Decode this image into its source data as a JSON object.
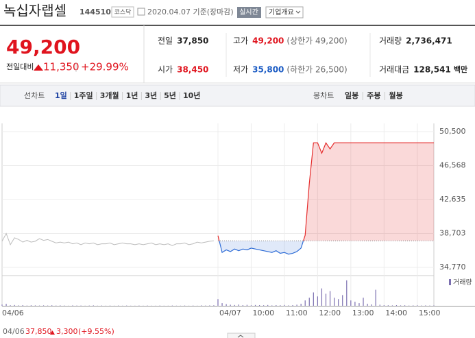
{
  "stock": {
    "name": "녹십자랩셀",
    "code": "144510",
    "market": "코스닥",
    "date": "2020.04.07 기준(장마감)",
    "realtime": "실시간",
    "overview": "기업개요"
  },
  "quote": {
    "price": "49,200",
    "change_label": "전일대비",
    "change": "11,350",
    "rate": "+29.99%"
  },
  "stats": [
    [
      {
        "label": "전일",
        "value": "37,850",
        "color": "#222"
      },
      {
        "label": "고가",
        "value": "49,200",
        "extra": "(상한가 49,200)",
        "color": "#e0141e"
      },
      {
        "label": "거래량",
        "value": "2,736,471",
        "color": "#222"
      }
    ],
    [
      {
        "label": "시가",
        "value": "38,450",
        "color": "#e0141e"
      },
      {
        "label": "저가",
        "value": "35,800",
        "extra": "(하한가 26,500)",
        "color": "#1a5bc4"
      },
      {
        "label": "거래대금",
        "value": "128,541",
        "unit": "백만",
        "color": "#222"
      }
    ]
  ],
  "tabs": {
    "line_label": "선차트",
    "line": [
      "1일",
      "1주일",
      "3개월",
      "1년",
      "3년",
      "5년",
      "10년"
    ],
    "candle_label": "봉차트",
    "candle": [
      "일봉",
      "주봉",
      "월봉"
    ]
  },
  "footer": {
    "date": "04/06",
    "close": "37,850",
    "change": "3,300",
    "rate": "(+9.55%)"
  },
  "chart_data": [
    {
      "type": "line",
      "baseline": 37850,
      "up_color": "#e52b2b",
      "down_color": "#2c6bd6",
      "grid": true,
      "ylim": [
        34770,
        50500
      ],
      "yticks": [
        {
          "value": 50500,
          "label": "50,500"
        },
        {
          "value": 46568,
          "label": "46,568"
        },
        {
          "value": 42635,
          "label": "42,635"
        },
        {
          "value": 38703,
          "label": "38,703"
        },
        {
          "value": 34770,
          "label": "34,770"
        }
      ],
      "categories": [
        "04/06",
        null,
        null,
        null,
        null,
        null,
        null,
        null,
        null,
        null,
        null,
        null,
        null,
        null,
        null,
        null,
        null,
        null,
        null,
        null,
        null,
        null,
        null,
        null,
        null,
        null,
        null,
        null,
        null,
        null,
        null,
        null,
        null,
        null,
        null,
        null,
        null,
        null,
        null,
        null,
        null,
        null,
        null,
        null,
        null,
        null,
        null,
        null,
        null,
        null,
        null,
        null,
        "04/07",
        null,
        null,
        null,
        null,
        null,
        null,
        null,
        "10:00",
        null,
        null,
        null,
        null,
        null,
        null,
        null,
        "11:00",
        null,
        null,
        null,
        null,
        null,
        null,
        null,
        "12:00",
        null,
        null,
        null,
        null,
        null,
        null,
        null,
        "13:00",
        null,
        null,
        null,
        null,
        null,
        null,
        null,
        "14:00",
        null,
        null,
        null,
        null,
        null,
        null,
        null,
        "15:00",
        null,
        null,
        null,
        null
      ],
      "series": [
        {
          "color": "#bbbbbb",
          "values": [
            37800,
            38700,
            37400,
            38200,
            38000,
            37700,
            37900,
            37700,
            37800,
            38100,
            37900,
            38000,
            37800,
            37600,
            37700,
            37600,
            37700,
            37500,
            37600,
            37400,
            37600,
            37500,
            37600,
            37400,
            37500,
            37500,
            37600,
            37400,
            37500,
            37600,
            37500,
            37500,
            37400,
            37500,
            37400,
            37500,
            37600,
            37400,
            37500,
            37400,
            37500,
            37300,
            37500,
            37500,
            37600,
            37400,
            37500,
            37700,
            37600,
            37700,
            37800,
            37850,
            null,
            null,
            null,
            null,
            null,
            null,
            null,
            null,
            null,
            null,
            null,
            null,
            null,
            null,
            null,
            null,
            null,
            null,
            null,
            null,
            null,
            null,
            null,
            null,
            null,
            null,
            null,
            null,
            null,
            null,
            null,
            null,
            null,
            null,
            null,
            null,
            null,
            null,
            null,
            null,
            null,
            null,
            null,
            null,
            null,
            null,
            null,
            null,
            null,
            null,
            null,
            null,
            null
          ]
        },
        {
          "color": "#e52b2b",
          "values": [
            null,
            null,
            null,
            null,
            null,
            null,
            null,
            null,
            null,
            null,
            null,
            null,
            null,
            null,
            null,
            null,
            null,
            null,
            null,
            null,
            null,
            null,
            null,
            null,
            null,
            null,
            null,
            null,
            null,
            null,
            null,
            null,
            null,
            null,
            null,
            null,
            null,
            null,
            null,
            null,
            null,
            null,
            null,
            null,
            null,
            null,
            null,
            null,
            null,
            null,
            null,
            null,
            38450,
            36500,
            36800,
            36600,
            36900,
            36700,
            36900,
            36800,
            37000,
            36900,
            36800,
            36700,
            36600,
            36500,
            36700,
            36400,
            36500,
            36300,
            36400,
            36600,
            37000,
            38500,
            44500,
            49200,
            49200,
            48000,
            49200,
            48500,
            49200,
            49200,
            49200,
            49200,
            49200,
            49200,
            49200,
            49200,
            49200,
            49200,
            49200,
            49200,
            49200,
            49200,
            49200,
            49200,
            49200,
            49200,
            49200,
            49200,
            49200,
            49200,
            49200,
            49200,
            49200
          ]
        }
      ]
    },
    {
      "type": "bar",
      "color": "#7b6fb0",
      "ylim": [
        0,
        200000
      ],
      "series": [
        {
          "name": "거래량",
          "color": "#7b6fb0",
          "values": [
            9000,
            14000,
            4000,
            6000,
            3000,
            5000,
            2000,
            4000,
            3000,
            2000,
            3000,
            2000,
            4000,
            2000,
            3000,
            2000,
            1000,
            3000,
            2000,
            2000,
            1000,
            2000,
            3000,
            1000,
            2000,
            1000,
            2000,
            1000,
            2000,
            1000,
            2000,
            1000,
            1000,
            2000,
            1000,
            2000,
            1000,
            1000,
            2000,
            1000,
            1000,
            2000,
            1000,
            1000,
            2000,
            1000,
            2000,
            1000,
            3000,
            2000,
            3000,
            4000,
            50000,
            20000,
            12000,
            8000,
            6000,
            9000,
            5000,
            7000,
            4000,
            6000,
            5000,
            4000,
            6000,
            3000,
            5000,
            4000,
            6000,
            3000,
            5000,
            8000,
            15000,
            40000,
            60000,
            100000,
            70000,
            130000,
            90000,
            110000,
            60000,
            50000,
            80000,
            190000,
            40000,
            30000,
            20000,
            60000,
            15000,
            10000,
            120000,
            8000,
            5000,
            4000,
            3000,
            5000,
            3000,
            4000,
            2000,
            3000,
            4000,
            2000,
            3000,
            2000,
            3000
          ]
        }
      ]
    }
  ]
}
